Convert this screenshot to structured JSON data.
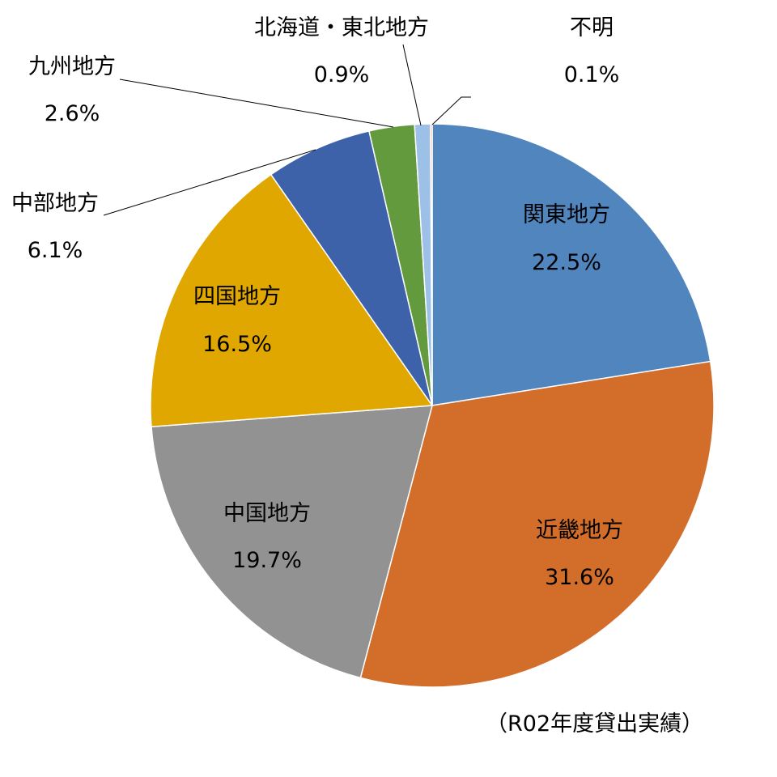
{
  "chart_data": {
    "type": "pie",
    "title": "",
    "slices": [
      {
        "name": "関東地方",
        "value": 22.5,
        "label": "22.5%",
        "color": "#5185BE"
      },
      {
        "name": "近畿地方",
        "value": 31.6,
        "label": "31.6%",
        "color": "#D26D2A"
      },
      {
        "name": "中国地方",
        "value": 19.7,
        "label": "19.7%",
        "color": "#929292"
      },
      {
        "name": "四国地方",
        "value": 16.5,
        "label": "16.5%",
        "color": "#E0A700"
      },
      {
        "name": "中部地方",
        "value": 6.1,
        "label": "6.1%",
        "color": "#3D62AA"
      },
      {
        "name": "九州地方",
        "value": 2.6,
        "label": "2.6%",
        "color": "#639A3E"
      },
      {
        "name": "北海道・東北地方",
        "value": 0.9,
        "label": "0.9%",
        "color": "#9CC0E6"
      },
      {
        "name": "不明",
        "value": 0.1,
        "label": "0.1%",
        "color": "#EE8E6A"
      }
    ],
    "start_angle_deg": 0,
    "direction": "clockwise",
    "legend": "none",
    "note": "（R02年度貸出実績）"
  }
}
